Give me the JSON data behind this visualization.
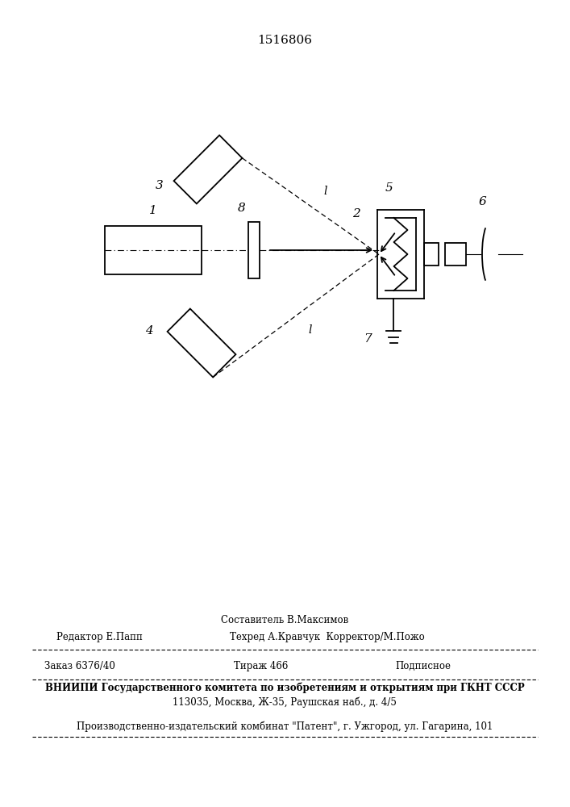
{
  "patent_number": "1516806",
  "bg_color": "#ffffff",
  "line_color": "#000000",
  "fig_width": 7.07,
  "fig_height": 10.0,
  "dpi": 100,
  "footer": {
    "sestavitel": "Составитель В.Максимов",
    "redaktor": "Редактор Е.Папп",
    "tehred": "Техред А.Кравчук",
    "korrektor": "Корректор/М.Пожо",
    "zakaz": "Заказ 6376/40",
    "tirazh": "Тираж 466",
    "podpisnoe": "Подписное",
    "vniipи": "ВНИИПИ Государственного комитета по изобретениям и открытиям при ГКНТ СССР",
    "address": "113035, Москва, Ж-35, Раушская наб., д. 4/5",
    "kombinat": "Производственно-издательский комбинат \"Патент\", г. Ужгород, ул. Гагарина, 101"
  }
}
